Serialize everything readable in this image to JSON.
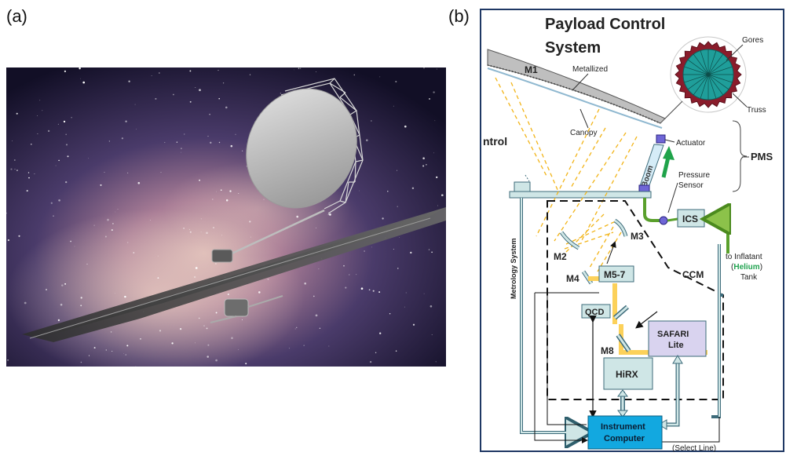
{
  "panels": {
    "a_label": "(a)",
    "b_label": "(b)"
  },
  "diagram": {
    "title_line1": "Payload Control",
    "title_line2": "System",
    "truncated_label": "ntrol",
    "labels": {
      "m1": "M1",
      "metallized": "Metallized",
      "canopy": "Canopy",
      "gores": "Gores",
      "truss": "Truss",
      "actuator": "Actuator",
      "pms": "PMS",
      "boom": "Boom",
      "pressure_sensor_1": "Pressure",
      "pressure_sensor_2": "Sensor",
      "ics": "ICS",
      "metrology_system": "Metrology System",
      "m2": "M2",
      "m3": "M3",
      "m4": "M4",
      "m5_7": "M5-7",
      "ccm": "CCM",
      "inflatant_1": "to Inflatant",
      "inflatant_open": "(",
      "inflatant_gas": "Helium",
      "inflatant_close": ")",
      "inflatant_3": "Tank",
      "qcd": "QCD",
      "m8": "M8",
      "safari_1": "SAFARI",
      "safari_2": "Lite",
      "hirx": "HiRX",
      "instrument_1": "Instrument",
      "instrument_2": "Computer",
      "select_line": "(Select Line)"
    }
  },
  "colors": {
    "frame": "#1f3864",
    "box_fill": "#cfe6e6",
    "box_stroke": "#3d6b7a",
    "computer_fill": "#12a8e0",
    "optical_beam": "#fcd15a",
    "optical_path": "#f2b418",
    "boom_fill": "#d5ecf7",
    "actuator_fill": "#6f66d6",
    "green_line": "#5aa02c",
    "arrow_green": "#1fa34a",
    "helium_text": "#21a350",
    "safari_fill": "#d9d3ef",
    "truss_ring": "#8a1c2b",
    "gores_fill": "#1f9e9a"
  }
}
